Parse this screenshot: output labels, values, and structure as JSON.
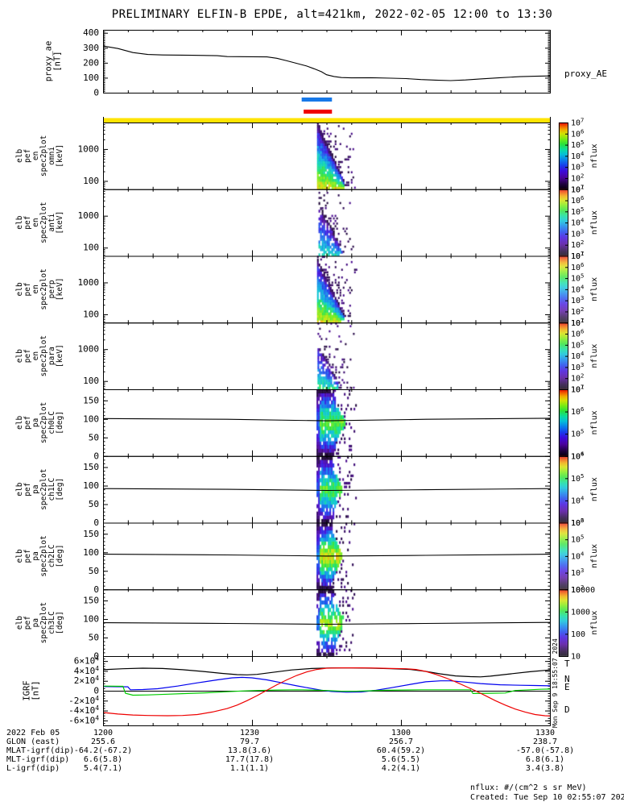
{
  "title": "PRELIMINARY ELFIN-B EPDE, alt=421km, 2022-02-05 12:00 to 13:30",
  "footer": {
    "units_note": "nflux: #/(cm^2 s sr MeV)",
    "created": "Created: Tue Sep 10 02:55:07 2024"
  },
  "side_timestamp": "Mon Sep  9 18:55:07 2024",
  "colors": {
    "bar_blue": "#1778e8",
    "bar_red": "#f00000",
    "bar_yellow": "#ffe400",
    "igrf_T": "#000000",
    "igrf_N": "#0000ee",
    "igrf_E": "#00cc00",
    "igrf_D": "#ee0000"
  },
  "igrf_legend": [
    {
      "label": "T",
      "color": "#000000"
    },
    {
      "label": "N",
      "color": "#0000ee"
    },
    {
      "label": "E",
      "color": "#00cc00"
    },
    {
      "label": "D",
      "color": "#ee0000"
    }
  ],
  "bottom_table": {
    "rows": [
      {
        "label": "2022 Feb 05",
        "values": [
          "1200",
          "1230",
          "1300",
          "1330"
        ]
      },
      {
        "label": "GLON (east)",
        "values": [
          "255.6",
          "79.7",
          "256.7",
          "238.7"
        ]
      },
      {
        "label": "MLAT-igrf(dip)",
        "values": [
          "-64.2(-67.2)",
          "13.8(3.6)",
          "60.4(59.2)",
          "-57.0(-57.8)"
        ]
      },
      {
        "label": "MLT-igrf(dip)",
        "values": [
          "6.6(5.8)",
          "17.7(17.8)",
          "5.6(5.5)",
          "6.8(6.1)"
        ]
      },
      {
        "label": "L-igrf(dip)",
        "values": [
          "5.4(7.1)",
          "1.1(1.1)",
          "4.2(4.1)",
          "3.4(3.8)"
        ]
      }
    ]
  },
  "chart_data": {
    "type": "multi-panel-time-series",
    "time_axis": {
      "start_label": "1200",
      "end_label": "1330",
      "tick_minutes": [
        0,
        30,
        60,
        90
      ],
      "tick_labels": [
        "1200",
        "1230",
        "1300",
        "1330"
      ],
      "minor_step_min": 5
    },
    "panels": [
      {
        "kind": "proxy",
        "type": "line",
        "id": "proxy_ae",
        "ylabel_lines": [
          "proxy_ae",
          "[nT]"
        ],
        "right_label": "proxy_AE",
        "ylim": [
          0,
          420
        ],
        "yticks": [
          0,
          100,
          200,
          300,
          400
        ],
        "x_minutes": [
          0,
          3,
          6,
          9,
          12,
          18,
          23,
          25,
          30,
          33,
          35,
          37,
          39,
          41,
          42.5,
          44,
          45,
          46.5,
          48,
          50,
          54,
          58,
          61,
          64,
          67,
          70,
          73,
          76,
          80,
          84,
          87,
          90
        ],
        "y_nT": [
          312,
          295,
          268,
          255,
          252,
          250,
          247,
          241,
          240,
          239,
          230,
          213,
          196,
          178,
          160,
          140,
          120,
          108,
          101,
          99,
          100,
          97,
          94,
          88,
          84,
          81,
          85,
          92,
          100,
          107,
          110,
          112
        ]
      },
      {
        "kind": "bars",
        "type": "interval-bars",
        "bars": [
          {
            "name": "science-zone-blue",
            "color_key": "bar_blue",
            "t_start": 40.0,
            "t_end": 46.1
          },
          {
            "name": "science-zone-red",
            "color_key": "bar_red",
            "t_start": 40.4,
            "t_end": 46.1
          },
          {
            "name": "coverage-yellow",
            "color_key": "bar_yellow",
            "t_start": 0,
            "t_end": 90
          }
        ]
      },
      {
        "kind": "heat-energy",
        "type": "heatmap",
        "id": "elb_pef_en_spec2plot_omni",
        "ylabel_lines": [
          "elb",
          "pef",
          "en",
          "spec2plot",
          "omni",
          "[keV]"
        ],
        "yscale": "log",
        "ylim_keV": [
          55,
          6800
        ],
        "yticks": [
          100,
          1000
        ],
        "colorbar": {
          "labels": [
            "10^7",
            "10^6",
            "10^5",
            "10^4",
            "10^3",
            "10^2",
            "10^1"
          ],
          "title": "nflux"
        },
        "blob": {
          "t_start": 43.1,
          "t_end": 48.4,
          "cutoff_start_keV": 6800,
          "cutoff_end_keV": 105,
          "intensity": 0.88,
          "gap_prob": 0.06,
          "speckle_t_end": 51.5,
          "seed": 11
        }
      },
      {
        "kind": "heat-energy",
        "type": "heatmap",
        "id": "elb_pef_en_spec2plot_anti",
        "ylabel_lines": [
          "elb",
          "pef",
          "en",
          "spec2plot",
          "anti",
          "[keV]"
        ],
        "yscale": "log",
        "ylim_keV": [
          55,
          6800
        ],
        "yticks": [
          100,
          1000
        ],
        "colorbar": {
          "labels": [
            "10^7",
            "10^6",
            "10^5",
            "10^4",
            "10^3",
            "10^2",
            "10^1"
          ],
          "title": "nflux"
        },
        "blob": {
          "t_start": 43.4,
          "t_end": 48.0,
          "cutoff_start_keV": 2500,
          "cutoff_end_keV": 100,
          "intensity": 0.62,
          "gap_prob": 0.3,
          "speckle_t_end": 51.0,
          "seed": 22
        }
      },
      {
        "kind": "heat-energy",
        "type": "heatmap",
        "id": "elb_pef_en_spec2plot_perp",
        "ylabel_lines": [
          "elb",
          "pef",
          "en",
          "spec2plot",
          "perp",
          "[keV]"
        ],
        "yscale": "log",
        "ylim_keV": [
          55,
          6800
        ],
        "yticks": [
          100,
          1000
        ],
        "colorbar": {
          "labels": [
            "10^7",
            "10^6",
            "10^5",
            "10^4",
            "10^3",
            "10^2",
            "10^1"
          ],
          "title": "nflux"
        },
        "blob": {
          "t_start": 43.1,
          "t_end": 48.3,
          "cutoff_start_keV": 5500,
          "cutoff_end_keV": 105,
          "intensity": 0.85,
          "gap_prob": 0.08,
          "speckle_t_end": 51.0,
          "seed": 33
        }
      },
      {
        "kind": "heat-energy",
        "type": "heatmap",
        "id": "elb_pef_en_spec2plot_para",
        "ylabel_lines": [
          "elb",
          "pef",
          "en",
          "spec2plot",
          "para",
          "[keV]"
        ],
        "yscale": "log",
        "ylim_keV": [
          55,
          6800
        ],
        "yticks": [
          100,
          1000
        ],
        "colorbar": {
          "labels": [
            "10^7",
            "10^6",
            "10^5",
            "10^4",
            "10^3",
            "10^2",
            "10^1"
          ],
          "title": "nflux"
        },
        "blob": {
          "t_start": 43.2,
          "t_end": 47.2,
          "cutoff_start_keV": 1600,
          "cutoff_end_keV": 95,
          "intensity": 0.66,
          "gap_prob": 0.28,
          "speckle_t_end": 51.0,
          "seed": 44
        }
      },
      {
        "kind": "heat-pa",
        "type": "heatmap",
        "id": "elb_pef_pa_spec2plot_ch0LC",
        "ylabel_lines": [
          "elb",
          "pef",
          "pa",
          "spec2plot",
          "ch0LC",
          "[deg]"
        ],
        "ylim_deg": [
          0,
          180
        ],
        "yticks": [
          0,
          50,
          100,
          150
        ],
        "colorbar": {
          "labels": [
            "10^7",
            "10^6",
            "10^5",
            "10^4"
          ],
          "title": "nflux"
        },
        "blob": {
          "t_start": 43.0,
          "t_end": 48.6,
          "center_deg": 90,
          "peak_intensity": 0.74,
          "gap_prob": 0.08,
          "speckle_t_end": 51.0,
          "seed": 55
        },
        "loss_cone_deg": [
          [
            0,
            101
          ],
          [
            25,
            99
          ],
          [
            45,
            95
          ],
          [
            65,
            99
          ],
          [
            90,
            102
          ]
        ]
      },
      {
        "kind": "heat-pa",
        "type": "heatmap",
        "id": "elb_pef_pa_spec2plot_ch1LC",
        "ylabel_lines": [
          "elb",
          "pef",
          "pa",
          "spec2plot",
          "ch1LC",
          "[deg]"
        ],
        "ylim_deg": [
          0,
          180
        ],
        "yticks": [
          0,
          50,
          100,
          150
        ],
        "colorbar": {
          "labels": [
            "10^6",
            "10^5",
            "10^4",
            "10^3"
          ],
          "title": "nflux"
        },
        "blob": {
          "t_start": 43.0,
          "t_end": 48.2,
          "center_deg": 90,
          "peak_intensity": 0.72,
          "gap_prob": 0.1,
          "speckle_t_end": 51.0,
          "seed": 66
        },
        "loss_cone_deg": [
          [
            0,
            92
          ],
          [
            25,
            90
          ],
          [
            45,
            87
          ],
          [
            65,
            89
          ],
          [
            90,
            92
          ]
        ]
      },
      {
        "kind": "heat-pa",
        "type": "heatmap",
        "id": "elb_pef_pa_spec2plot_ch2LC",
        "ylabel_lines": [
          "elb",
          "pef",
          "pa",
          "spec2plot",
          "ch2LC",
          "[deg]"
        ],
        "ylim_deg": [
          0,
          180
        ],
        "yticks": [
          0,
          50,
          100,
          150
        ],
        "colorbar": {
          "labels": [
            "10^6",
            "10^5",
            "10^4",
            "10^3",
            "10^2"
          ],
          "title": "nflux"
        },
        "blob": {
          "t_start": 43.0,
          "t_end": 48.0,
          "center_deg": 90,
          "peak_intensity": 0.85,
          "gap_prob": 0.12,
          "speckle_t_end": 51.0,
          "seed": 77
        },
        "loss_cone_deg": [
          [
            0,
            95
          ],
          [
            25,
            93
          ],
          [
            45,
            90
          ],
          [
            65,
            92
          ],
          [
            90,
            95
          ]
        ]
      },
      {
        "kind": "heat-pa",
        "type": "heatmap",
        "id": "elb_pef_pa_spec2plot_ch3LC",
        "ylabel_lines": [
          "elb",
          "pef",
          "pa",
          "spec2plot",
          "ch3LC",
          "[deg]"
        ],
        "ylim_deg": [
          0,
          180
        ],
        "yticks": [
          0,
          50,
          100,
          150
        ],
        "colorbar": {
          "labels": [
            "10000",
            "1000",
            "100",
            "10"
          ],
          "title": "nflux"
        },
        "blob": {
          "t_start": 43.0,
          "t_end": 48.6,
          "center_deg": 90,
          "peak_intensity": 0.8,
          "gap_prob": 0.3,
          "speckle_t_end": 51.5,
          "seed": 88
        },
        "loss_cone_deg": [
          [
            0,
            90
          ],
          [
            25,
            88
          ],
          [
            45,
            86
          ],
          [
            65,
            88
          ],
          [
            90,
            91
          ]
        ]
      },
      {
        "kind": "igrf",
        "type": "multi-line",
        "id": "igrf",
        "ylabel_lines": [
          "IGRF",
          "[nT]"
        ],
        "ylim": [
          -70000,
          70000
        ],
        "yticks": [
          {
            "v": 60000,
            "label": "6×10^4"
          },
          {
            "v": 40000,
            "label": "4×10^4"
          },
          {
            "v": 20000,
            "label": "2×10^4"
          },
          {
            "v": 0,
            "label": "0"
          },
          {
            "v": -20000,
            "label": "-2×10^4"
          },
          {
            "v": -40000,
            "label": "-4×10^4"
          },
          {
            "v": -60000,
            "label": "-6×10^4"
          }
        ],
        "series": [
          {
            "name": "T",
            "color_key": "igrf_T",
            "x_minutes": [
              0,
              4,
              8,
              12,
              16,
              20,
              24,
              27,
              29,
              31,
              34,
              38,
              42,
              46,
              50,
              54,
              58,
              62,
              65,
              68,
              71,
              74,
              76,
              78,
              82,
              86,
              90
            ],
            "y_nT": [
              42500,
              44500,
              45500,
              45000,
              42500,
              39000,
              35000,
              32500,
              32000,
              33000,
              37000,
              42000,
              45000,
              46000,
              46000,
              45500,
              44500,
              43000,
              39000,
              34000,
              30000,
              28500,
              28000,
              29500,
              34000,
              38500,
              42000
            ]
          },
          {
            "name": "N",
            "color_key": "igrf_N",
            "x_minutes": [
              0,
              3,
              5,
              5.5,
              8,
              11,
              15,
              19,
              23,
              26,
              28,
              30,
              33,
              36,
              39,
              42,
              44,
              46,
              49,
              52,
              55,
              58,
              62,
              65,
              68,
              70,
              73,
              76,
              80,
              84,
              87,
              90
            ],
            "y_nT": [
              8500,
              8200,
              8000,
              2000,
              2500,
              4000,
              9500,
              16000,
              22000,
              26000,
              27000,
              26000,
              22000,
              16000,
              10000,
              4500,
              1000,
              -1500,
              -3000,
              -2500,
              1000,
              6000,
              13000,
              18000,
              20000,
              20000,
              17500,
              14500,
              12000,
              11000,
              10500,
              10000
            ]
          },
          {
            "name": "E",
            "color_key": "igrf_E",
            "x_minutes": [
              0,
              4,
              4.5,
              6,
              9,
              13,
              17,
              21,
              25,
              28,
              31,
              35,
              39,
              42,
              45,
              48,
              51,
              54,
              57,
              60,
              64,
              68,
              72,
              74,
              74.5,
              78,
              81,
              83,
              86,
              88,
              90
            ],
            "y_nT": [
              9500,
              9000,
              -5000,
              -9000,
              -8500,
              -7000,
              -5500,
              -4000,
              -2000,
              -500,
              500,
              1500,
              2000,
              1500,
              500,
              -1000,
              -1000,
              0,
              1000,
              1500,
              2000,
              2000,
              2000,
              2000,
              -5500,
              -5000,
              -4500,
              500,
              2000,
              3000,
              3500
            ]
          },
          {
            "name": "D",
            "color_key": "igrf_D",
            "x_minutes": [
              0,
              3,
              6,
              9,
              13,
              16,
              19,
              22,
              25,
              27,
              29,
              31,
              33,
              35,
              37,
              39,
              41,
              43,
              45,
              48,
              52,
              55,
              58,
              61,
              63,
              65,
              67,
              69,
              71,
              73,
              75,
              77,
              79,
              81,
              83,
              85,
              87,
              89,
              90
            ],
            "y_nT": [
              -44000,
              -47000,
              -49000,
              -50000,
              -50500,
              -50000,
              -48000,
              -43000,
              -36000,
              -29000,
              -20000,
              -10000,
              1000,
              12000,
              22000,
              31000,
              38000,
              43000,
              45500,
              46200,
              46200,
              45800,
              45000,
              44500,
              43000,
              39000,
              33000,
              26000,
              18000,
              9000,
              0,
              -10000,
              -20000,
              -29000,
              -37000,
              -43000,
              -48000,
              -50500,
              -51000
            ]
          }
        ]
      }
    ]
  }
}
